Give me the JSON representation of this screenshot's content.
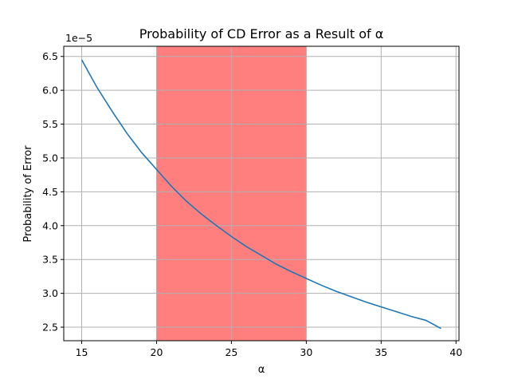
{
  "chart_data": {
    "type": "line",
    "title": "Probability of CD Error as a Result of α",
    "xlabel": "α",
    "ylabel": "Probability of Error",
    "y_offset_label": "1e−5",
    "xlim": [
      13.8,
      40.2
    ],
    "ylim": [
      2.3,
      6.65
    ],
    "x_ticks": [
      15,
      20,
      25,
      30,
      35,
      40
    ],
    "y_ticks": [
      2.5,
      3.0,
      3.5,
      4.0,
      4.5,
      5.0,
      5.5,
      6.0,
      6.5
    ],
    "x_tick_labels": [
      "15",
      "20",
      "25",
      "30",
      "35",
      "40"
    ],
    "y_tick_labels": [
      "2.5",
      "3.0",
      "3.5",
      "4.0",
      "4.5",
      "5.0",
      "5.5",
      "6.0",
      "6.5"
    ],
    "grid": true,
    "highlight_span": {
      "x": [
        20,
        30
      ],
      "color": "#ff7f7f"
    },
    "series": [
      {
        "color": "#1f77b4",
        "x": [
          15,
          16,
          17,
          18,
          19,
          20,
          21,
          22,
          23,
          24,
          25,
          26,
          27,
          28,
          29,
          30,
          31,
          32,
          33,
          34,
          35,
          36,
          37,
          38,
          39
        ],
        "y": [
          6.45,
          6.05,
          5.7,
          5.37,
          5.08,
          4.83,
          4.58,
          4.36,
          4.17,
          4.0,
          3.84,
          3.69,
          3.56,
          3.43,
          3.32,
          3.22,
          3.12,
          3.03,
          2.95,
          2.87,
          2.8,
          2.73,
          2.66,
          2.6,
          2.48
        ]
      }
    ]
  }
}
